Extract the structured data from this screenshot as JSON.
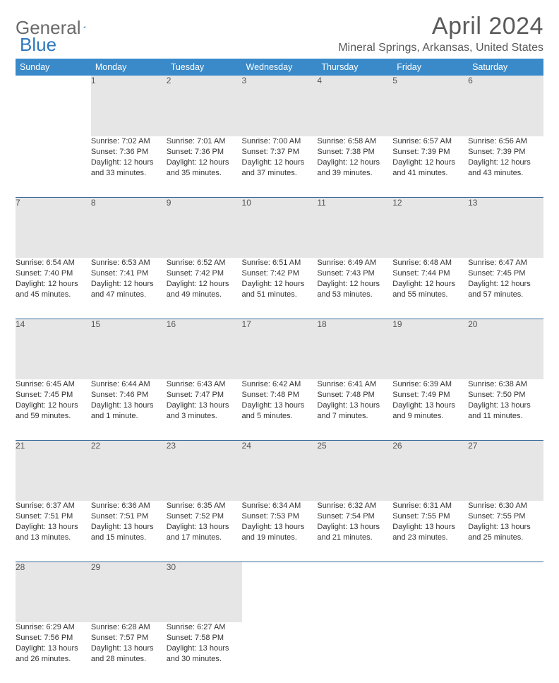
{
  "logo": {
    "text1": "General",
    "text2": "Blue"
  },
  "title": "April 2024",
  "location": "Mineral Springs, Arkansas, United States",
  "colors": {
    "header_bg": "#3a8ac9",
    "header_text": "#ffffff",
    "daynum_bg": "#e6e6e6",
    "row_border": "#3a6a9a",
    "text": "#333333",
    "title_color": "#5a5a5a"
  },
  "fonts": {
    "title_size": 34,
    "location_size": 16,
    "header_size": 12.5,
    "cell_size": 11
  },
  "weekdays": [
    "Sunday",
    "Monday",
    "Tuesday",
    "Wednesday",
    "Thursday",
    "Friday",
    "Saturday"
  ],
  "weeks": [
    {
      "nums": [
        "",
        "1",
        "2",
        "3",
        "4",
        "5",
        "6"
      ],
      "cells": [
        "",
        "Sunrise: 7:02 AM\nSunset: 7:36 PM\nDaylight: 12 hours and 33 minutes.",
        "Sunrise: 7:01 AM\nSunset: 7:36 PM\nDaylight: 12 hours and 35 minutes.",
        "Sunrise: 7:00 AM\nSunset: 7:37 PM\nDaylight: 12 hours and 37 minutes.",
        "Sunrise: 6:58 AM\nSunset: 7:38 PM\nDaylight: 12 hours and 39 minutes.",
        "Sunrise: 6:57 AM\nSunset: 7:39 PM\nDaylight: 12 hours and 41 minutes.",
        "Sunrise: 6:56 AM\nSunset: 7:39 PM\nDaylight: 12 hours and 43 minutes."
      ]
    },
    {
      "nums": [
        "7",
        "8",
        "9",
        "10",
        "11",
        "12",
        "13"
      ],
      "cells": [
        "Sunrise: 6:54 AM\nSunset: 7:40 PM\nDaylight: 12 hours and 45 minutes.",
        "Sunrise: 6:53 AM\nSunset: 7:41 PM\nDaylight: 12 hours and 47 minutes.",
        "Sunrise: 6:52 AM\nSunset: 7:42 PM\nDaylight: 12 hours and 49 minutes.",
        "Sunrise: 6:51 AM\nSunset: 7:42 PM\nDaylight: 12 hours and 51 minutes.",
        "Sunrise: 6:49 AM\nSunset: 7:43 PM\nDaylight: 12 hours and 53 minutes.",
        "Sunrise: 6:48 AM\nSunset: 7:44 PM\nDaylight: 12 hours and 55 minutes.",
        "Sunrise: 6:47 AM\nSunset: 7:45 PM\nDaylight: 12 hours and 57 minutes."
      ]
    },
    {
      "nums": [
        "14",
        "15",
        "16",
        "17",
        "18",
        "19",
        "20"
      ],
      "cells": [
        "Sunrise: 6:45 AM\nSunset: 7:45 PM\nDaylight: 12 hours and 59 minutes.",
        "Sunrise: 6:44 AM\nSunset: 7:46 PM\nDaylight: 13 hours and 1 minute.",
        "Sunrise: 6:43 AM\nSunset: 7:47 PM\nDaylight: 13 hours and 3 minutes.",
        "Sunrise: 6:42 AM\nSunset: 7:48 PM\nDaylight: 13 hours and 5 minutes.",
        "Sunrise: 6:41 AM\nSunset: 7:48 PM\nDaylight: 13 hours and 7 minutes.",
        "Sunrise: 6:39 AM\nSunset: 7:49 PM\nDaylight: 13 hours and 9 minutes.",
        "Sunrise: 6:38 AM\nSunset: 7:50 PM\nDaylight: 13 hours and 11 minutes."
      ]
    },
    {
      "nums": [
        "21",
        "22",
        "23",
        "24",
        "25",
        "26",
        "27"
      ],
      "cells": [
        "Sunrise: 6:37 AM\nSunset: 7:51 PM\nDaylight: 13 hours and 13 minutes.",
        "Sunrise: 6:36 AM\nSunset: 7:51 PM\nDaylight: 13 hours and 15 minutes.",
        "Sunrise: 6:35 AM\nSunset: 7:52 PM\nDaylight: 13 hours and 17 minutes.",
        "Sunrise: 6:34 AM\nSunset: 7:53 PM\nDaylight: 13 hours and 19 minutes.",
        "Sunrise: 6:32 AM\nSunset: 7:54 PM\nDaylight: 13 hours and 21 minutes.",
        "Sunrise: 6:31 AM\nSunset: 7:55 PM\nDaylight: 13 hours and 23 minutes.",
        "Sunrise: 6:30 AM\nSunset: 7:55 PM\nDaylight: 13 hours and 25 minutes."
      ]
    },
    {
      "nums": [
        "28",
        "29",
        "30",
        "",
        "",
        "",
        ""
      ],
      "cells": [
        "Sunrise: 6:29 AM\nSunset: 7:56 PM\nDaylight: 13 hours and 26 minutes.",
        "Sunrise: 6:28 AM\nSunset: 7:57 PM\nDaylight: 13 hours and 28 minutes.",
        "Sunrise: 6:27 AM\nSunset: 7:58 PM\nDaylight: 13 hours and 30 minutes.",
        "",
        "",
        "",
        ""
      ]
    }
  ]
}
